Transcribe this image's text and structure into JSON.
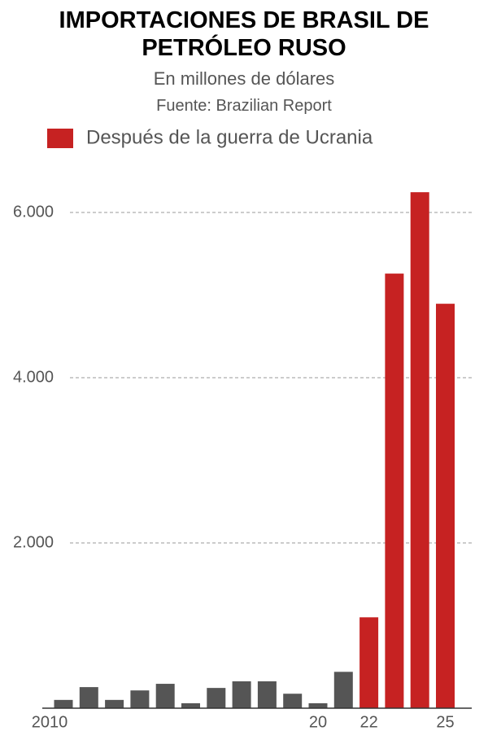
{
  "chart_data": {
    "type": "bar",
    "title": "IMPORTACIONES DE BRASIL DE PETRÓLEO RUSO",
    "subtitle": "En millones de dólares",
    "source": "Fuente: Brazilian Report",
    "categories": [
      "2010",
      null,
      null,
      null,
      null,
      null,
      null,
      null,
      null,
      null,
      "20",
      null,
      "22",
      null,
      null,
      "25"
    ],
    "series": [
      {
        "color": "#555555",
        "values": [
          100,
          255,
          100,
          215,
          295,
          60,
          245,
          325,
          325,
          175,
          60,
          440,
          null,
          null,
          null,
          null
        ]
      },
      {
        "name": "Después de la guerra de Ucrania",
        "color": "#c62222",
        "values": [
          null,
          null,
          null,
          null,
          null,
          null,
          null,
          null,
          null,
          null,
          null,
          null,
          1100,
          5260,
          6245,
          4895
        ]
      }
    ],
    "ylim": [
      0,
      6400
    ],
    "yticks": [
      {
        "value": 2000,
        "label": "2.000"
      },
      {
        "value": 4000,
        "label": "4.000"
      },
      {
        "value": 6000,
        "label": "6.000"
      }
    ],
    "grid": true
  }
}
